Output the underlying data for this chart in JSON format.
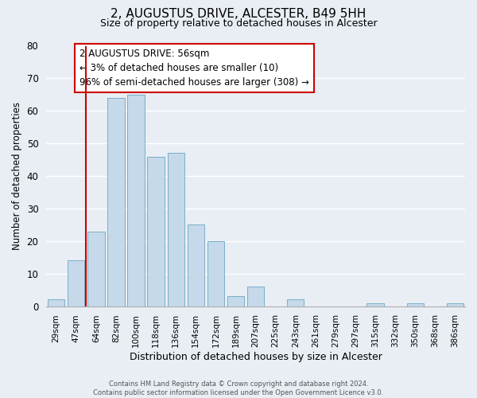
{
  "title": "2, AUGUSTUS DRIVE, ALCESTER, B49 5HH",
  "subtitle": "Size of property relative to detached houses in Alcester",
  "xlabel": "Distribution of detached houses by size in Alcester",
  "ylabel": "Number of detached properties",
  "bar_labels": [
    "29sqm",
    "47sqm",
    "64sqm",
    "82sqm",
    "100sqm",
    "118sqm",
    "136sqm",
    "154sqm",
    "172sqm",
    "189sqm",
    "207sqm",
    "225sqm",
    "243sqm",
    "261sqm",
    "279sqm",
    "297sqm",
    "315sqm",
    "332sqm",
    "350sqm",
    "368sqm",
    "386sqm"
  ],
  "bar_values": [
    2,
    14,
    23,
    64,
    65,
    46,
    47,
    25,
    20,
    3,
    6,
    0,
    2,
    0,
    0,
    0,
    1,
    0,
    1,
    0,
    1
  ],
  "bar_color": "#c5d9ea",
  "bar_edge_color": "#7aaec8",
  "vline_color": "#cc0000",
  "vline_x_idx": 1.5,
  "ylim": [
    0,
    80
  ],
  "yticks": [
    0,
    10,
    20,
    30,
    40,
    50,
    60,
    70,
    80
  ],
  "annotation_title": "2 AUGUSTUS DRIVE: 56sqm",
  "annotation_line1": "← 3% of detached houses are smaller (10)",
  "annotation_line2": "96% of semi-detached houses are larger (308) →",
  "annotation_box_facecolor": "#ffffff",
  "annotation_box_edgecolor": "#cc0000",
  "footer_line1": "Contains HM Land Registry data © Crown copyright and database right 2024.",
  "footer_line2": "Contains public sector information licensed under the Open Government Licence v3.0.",
  "background_color": "#e8eef4",
  "grid_color": "#ffffff",
  "spine_color": "#aaaaaa"
}
